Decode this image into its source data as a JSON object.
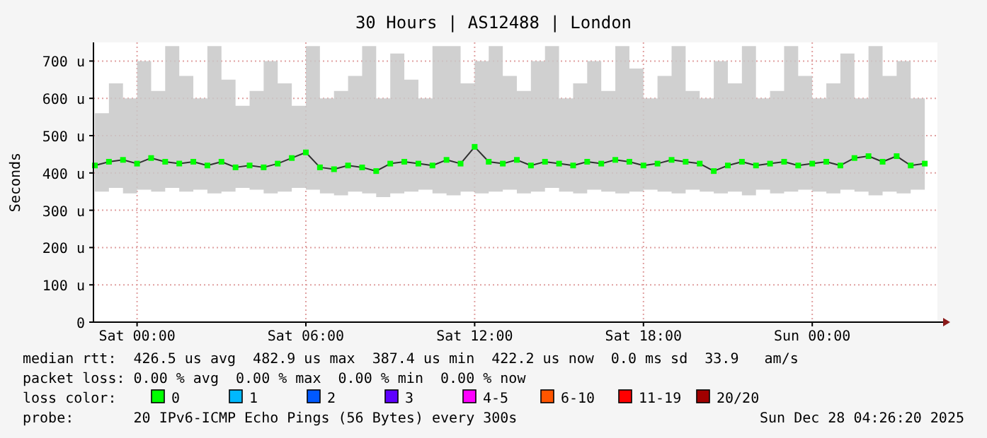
{
  "chart_data": {
    "type": "line",
    "title": "30 Hours | AS12488 | London",
    "ylabel": "Seconds",
    "x": [
      "2025-12-26T22:30",
      "2025-12-26T23:00",
      "2025-12-26T23:30",
      "2025-12-27T00:00",
      "2025-12-27T00:30",
      "2025-12-27T01:00",
      "2025-12-27T01:30",
      "2025-12-27T02:00",
      "2025-12-27T02:30",
      "2025-12-27T03:00",
      "2025-12-27T03:30",
      "2025-12-27T04:00",
      "2025-12-27T04:30",
      "2025-12-27T05:00",
      "2025-12-27T05:30",
      "2025-12-27T06:00",
      "2025-12-27T06:30",
      "2025-12-27T07:00",
      "2025-12-27T07:30",
      "2025-12-27T08:00",
      "2025-12-27T08:30",
      "2025-12-27T09:00",
      "2025-12-27T09:30",
      "2025-12-27T10:00",
      "2025-12-27T10:30",
      "2025-12-27T11:00",
      "2025-12-27T11:30",
      "2025-12-27T12:00",
      "2025-12-27T12:30",
      "2025-12-27T13:00",
      "2025-12-27T13:30",
      "2025-12-27T14:00",
      "2025-12-27T14:30",
      "2025-12-27T15:00",
      "2025-12-27T15:30",
      "2025-12-27T16:00",
      "2025-12-27T16:30",
      "2025-12-27T17:00",
      "2025-12-27T17:30",
      "2025-12-27T18:00",
      "2025-12-27T18:30",
      "2025-12-27T19:00",
      "2025-12-27T19:30",
      "2025-12-27T20:00",
      "2025-12-27T20:30",
      "2025-12-27T21:00",
      "2025-12-27T21:30",
      "2025-12-27T22:00",
      "2025-12-27T22:30",
      "2025-12-27T23:00",
      "2025-12-27T23:30",
      "2025-12-28T00:00",
      "2025-12-28T00:30",
      "2025-12-28T01:00",
      "2025-12-28T01:30",
      "2025-12-28T02:00",
      "2025-12-28T02:30",
      "2025-12-28T03:00",
      "2025-12-28T03:30",
      "2025-12-28T04:00"
    ],
    "xlim": [
      "2025-12-26T22:27",
      "2025-12-28T04:27"
    ],
    "xticks": [
      {
        "value": "2025-12-27T00:00",
        "label": "Sat 00:00"
      },
      {
        "value": "2025-12-27T06:00",
        "label": "Sat 06:00"
      },
      {
        "value": "2025-12-27T12:00",
        "label": "Sat 12:00"
      },
      {
        "value": "2025-12-27T18:00",
        "label": "Sat 18:00"
      },
      {
        "value": "2025-12-28T00:00",
        "label": "Sun 00:00"
      }
    ],
    "ylim": [
      0,
      750
    ],
    "yticks": [
      {
        "value": 0,
        "label": "0"
      },
      {
        "value": 100,
        "label": "100 u"
      },
      {
        "value": 200,
        "label": "200 u"
      },
      {
        "value": 300,
        "label": "300 u"
      },
      {
        "value": 400,
        "label": "400 u"
      },
      {
        "value": 500,
        "label": "500 u"
      },
      {
        "value": 600,
        "label": "600 u"
      },
      {
        "value": 700,
        "label": "700 u"
      }
    ],
    "grid": true,
    "marker": "square",
    "legend": "bottom",
    "legend_title": "loss color:",
    "series": [
      {
        "name": "0",
        "color": "#00ff00",
        "values": [
          420,
          430,
          435,
          425,
          440,
          430,
          425,
          430,
          420,
          430,
          415,
          420,
          415,
          425,
          440,
          455,
          415,
          410,
          420,
          415,
          405,
          425,
          430,
          425,
          420,
          435,
          425,
          470,
          430,
          425,
          435,
          420,
          430,
          425,
          420,
          430,
          425,
          435,
          430,
          420,
          425,
          435,
          430,
          425,
          405,
          420,
          430,
          420,
          425,
          430,
          420,
          425,
          430,
          420,
          440,
          445,
          430,
          445,
          420,
          425
        ],
        "upper": [
          560,
          640,
          600,
          700,
          620,
          740,
          660,
          600,
          740,
          650,
          580,
          620,
          700,
          640,
          580,
          740,
          600,
          620,
          660,
          740,
          600,
          720,
          650,
          600,
          740,
          740,
          640,
          700,
          740,
          660,
          620,
          700,
          740,
          600,
          640,
          700,
          620,
          740,
          680,
          600,
          660,
          740,
          620,
          600,
          700,
          640,
          740,
          600,
          620,
          740,
          660,
          600,
          640,
          720,
          600,
          740,
          660,
          700,
          600,
          620
        ],
        "lower": [
          350,
          360,
          345,
          355,
          350,
          360,
          350,
          355,
          345,
          350,
          360,
          355,
          345,
          350,
          360,
          355,
          345,
          340,
          350,
          345,
          335,
          345,
          350,
          355,
          345,
          340,
          350,
          345,
          350,
          355,
          345,
          350,
          360,
          350,
          345,
          355,
          350,
          345,
          350,
          355,
          350,
          345,
          355,
          350,
          345,
          350,
          340,
          355,
          345,
          350,
          355,
          350,
          345,
          355,
          350,
          340,
          350,
          345,
          355,
          360
        ]
      },
      {
        "name": "1",
        "color": "#00b8ff",
        "values": [
          null,
          null,
          null,
          null,
          null,
          null,
          null,
          null,
          null,
          null,
          null,
          null,
          null,
          null,
          null,
          null,
          null,
          null,
          null,
          null,
          null,
          null,
          null,
          null,
          null,
          null,
          null,
          null,
          null,
          null,
          null,
          null,
          null,
          null,
          null,
          null,
          null,
          null,
          null,
          null,
          null,
          null,
          null,
          null,
          null,
          null,
          null,
          null,
          null,
          null,
          null,
          null,
          null,
          null,
          null,
          null,
          null,
          null,
          null,
          null
        ]
      },
      {
        "name": "2",
        "color": "#0059ff",
        "values": [
          null,
          null,
          null,
          null,
          null,
          null,
          null,
          null,
          null,
          null,
          null,
          null,
          null,
          null,
          null,
          null,
          null,
          null,
          null,
          null,
          null,
          null,
          null,
          null,
          null,
          null,
          null,
          null,
          null,
          null,
          null,
          null,
          null,
          null,
          null,
          null,
          null,
          null,
          null,
          null,
          null,
          null,
          null,
          null,
          null,
          null,
          null,
          null,
          null,
          null,
          null,
          null,
          null,
          null,
          null,
          null,
          null,
          null,
          null,
          null
        ]
      },
      {
        "name": "3",
        "color": "#5e00ff",
        "values": [
          null,
          null,
          null,
          null,
          null,
          null,
          null,
          null,
          null,
          null,
          null,
          null,
          null,
          null,
          null,
          null,
          null,
          null,
          null,
          null,
          null,
          null,
          null,
          null,
          null,
          null,
          null,
          null,
          null,
          null,
          null,
          null,
          null,
          null,
          null,
          null,
          null,
          null,
          null,
          null,
          null,
          null,
          null,
          null,
          null,
          null,
          null,
          null,
          null,
          null,
          null,
          null,
          null,
          null,
          null,
          null,
          null,
          null,
          null,
          null
        ]
      },
      {
        "name": "4-5",
        "color": "#ff00ff",
        "values": [
          null,
          null,
          null,
          null,
          null,
          null,
          null,
          null,
          null,
          null,
          null,
          null,
          null,
          null,
          null,
          null,
          null,
          null,
          null,
          null,
          null,
          null,
          null,
          null,
          null,
          null,
          null,
          null,
          null,
          null,
          null,
          null,
          null,
          null,
          null,
          null,
          null,
          null,
          null,
          null,
          null,
          null,
          null,
          null,
          null,
          null,
          null,
          null,
          null,
          null,
          null,
          null,
          null,
          null,
          null,
          null,
          null,
          null,
          null,
          null
        ]
      },
      {
        "name": "6-10",
        "color": "#ff5500",
        "values": [
          null,
          null,
          null,
          null,
          null,
          null,
          null,
          null,
          null,
          null,
          null,
          null,
          null,
          null,
          null,
          null,
          null,
          null,
          null,
          null,
          null,
          null,
          null,
          null,
          null,
          null,
          null,
          null,
          null,
          null,
          null,
          null,
          null,
          null,
          null,
          null,
          null,
          null,
          null,
          null,
          null,
          null,
          null,
          null,
          null,
          null,
          null,
          null,
          null,
          null,
          null,
          null,
          null,
          null,
          null,
          null,
          null,
          null,
          null,
          null
        ]
      },
      {
        "name": "11-19",
        "color": "#ff0000",
        "values": [
          null,
          null,
          null,
          null,
          null,
          null,
          null,
          null,
          null,
          null,
          null,
          null,
          null,
          null,
          null,
          null,
          null,
          null,
          null,
          null,
          null,
          null,
          null,
          null,
          null,
          null,
          null,
          null,
          null,
          null,
          null,
          null,
          null,
          null,
          null,
          null,
          null,
          null,
          null,
          null,
          null,
          null,
          null,
          null,
          null,
          null,
          null,
          null,
          null,
          null,
          null,
          null,
          null,
          null,
          null,
          null,
          null,
          null,
          null,
          null
        ]
      },
      {
        "name": "20/20",
        "color": "#a10000",
        "values": [
          null,
          null,
          null,
          null,
          null,
          null,
          null,
          null,
          null,
          null,
          null,
          null,
          null,
          null,
          null,
          null,
          null,
          null,
          null,
          null,
          null,
          null,
          null,
          null,
          null,
          null,
          null,
          null,
          null,
          null,
          null,
          null,
          null,
          null,
          null,
          null,
          null,
          null,
          null,
          null,
          null,
          null,
          null,
          null,
          null,
          null,
          null,
          null,
          null,
          null,
          null,
          null,
          null,
          null,
          null,
          null,
          null,
          null,
          null,
          null
        ]
      }
    ],
    "annotations": [
      "median rtt:  426.5 us avg  482.9 us max  387.4 us min  422.2 us now  0.0 ms sd  33.9   am/s",
      "packet loss: 0.00 % avg  0.00 % max  0.00 % min  0.00 % now",
      "probe:       20 IPv6-ICMP Echo Pings (56 Bytes) every 300s",
      "Sun Dec 28 04:26:20 2025"
    ]
  }
}
